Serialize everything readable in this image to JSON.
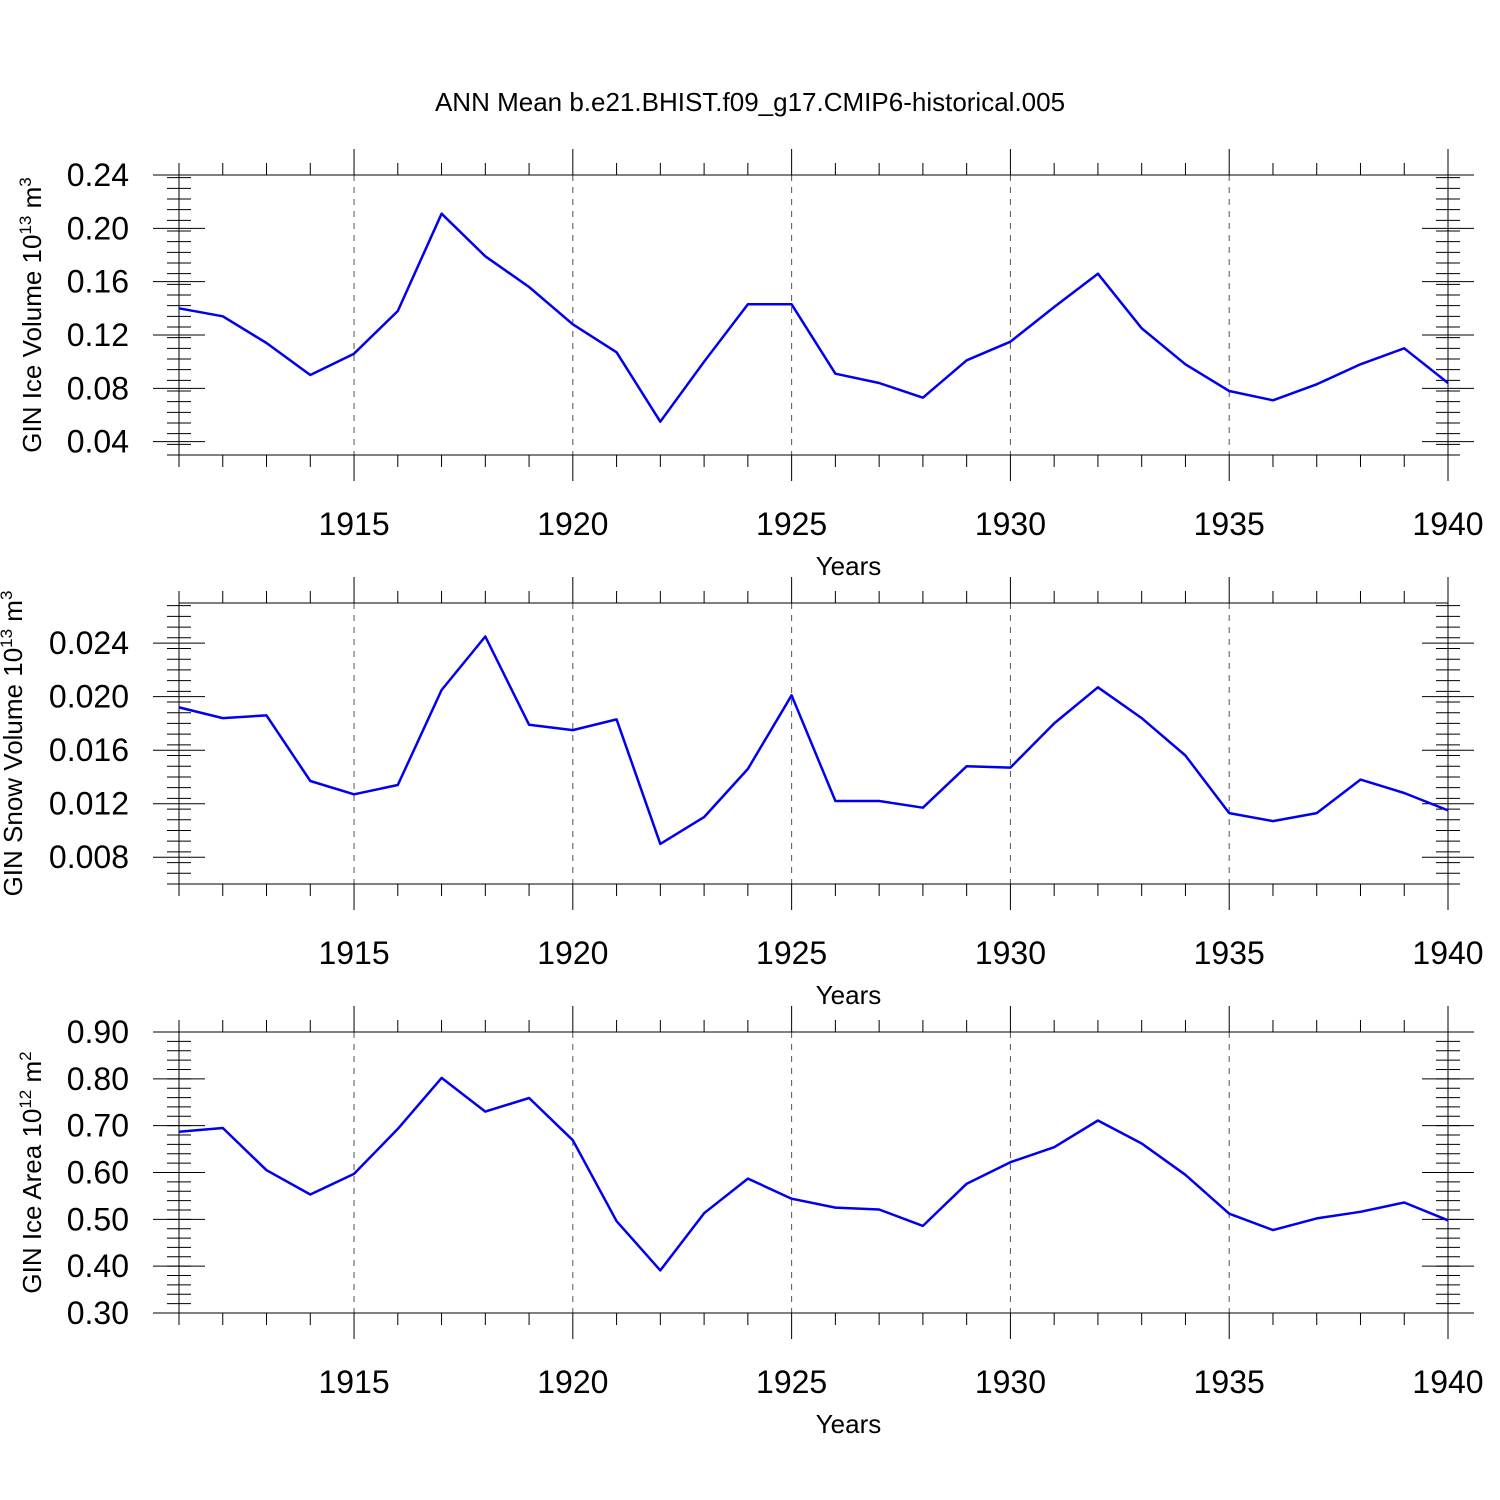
{
  "title": "ANN Mean b.e21.BHIST.f09_g17.CMIP6-historical.005",
  "colors": {
    "line": "#0000ee",
    "axis": "#000000",
    "grid": "#555555"
  },
  "chart_data": [
    {
      "type": "line",
      "ylabel": {
        "text": "GIN Ice Volume 10",
        "sup": "13",
        "unit": " m",
        "unit_sup": "3"
      },
      "xlabel": "Years",
      "xlim": [
        1911,
        1940
      ],
      "ylim": [
        0.03,
        0.24
      ],
      "yticks": [
        0.04,
        0.08,
        0.12,
        0.16,
        0.2,
        0.24
      ],
      "ytick_labels": [
        "0.04",
        "0.08",
        "0.12",
        "0.16",
        "0.20",
        "0.24"
      ],
      "yminor_step": 0.008,
      "xticks": [
        1915,
        1920,
        1925,
        1930,
        1935,
        1940
      ],
      "xtick_labels": [
        "1915",
        "1920",
        "1925",
        "1930",
        "1935",
        "1940"
      ],
      "grid": "vertical dashed at major x ticks",
      "x": [
        1911,
        1912,
        1913,
        1914,
        1915,
        1916,
        1917,
        1918,
        1919,
        1920,
        1921,
        1922,
        1923,
        1924,
        1925,
        1926,
        1927,
        1928,
        1929,
        1930,
        1931,
        1932,
        1933,
        1934,
        1935,
        1936,
        1937,
        1938,
        1939,
        1940
      ],
      "y": [
        0.14,
        0.134,
        0.114,
        0.09,
        0.106,
        0.138,
        0.211,
        0.179,
        0.156,
        0.128,
        0.107,
        0.055,
        0.1,
        0.143,
        0.143,
        0.091,
        0.084,
        0.073,
        0.101,
        0.115,
        0.141,
        0.166,
        0.125,
        0.098,
        0.078,
        0.071,
        0.083,
        0.098,
        0.11,
        0.084
      ]
    },
    {
      "type": "line",
      "ylabel": {
        "text": "GIN Snow Volume 10",
        "sup": "13",
        "unit": " m",
        "unit_sup": "3"
      },
      "xlabel": "Years",
      "xlim": [
        1911,
        1940
      ],
      "ylim": [
        0.006,
        0.027
      ],
      "yticks": [
        0.008,
        0.012,
        0.016,
        0.02,
        0.024
      ],
      "ytick_labels": [
        "0.008",
        "0.012",
        "0.016",
        "0.020",
        "0.024"
      ],
      "yminor_step": 0.0008,
      "xticks": [
        1915,
        1920,
        1925,
        1930,
        1935,
        1940
      ],
      "xtick_labels": [
        "1915",
        "1920",
        "1925",
        "1930",
        "1935",
        "1940"
      ],
      "grid": "vertical dashed at major x ticks",
      "x": [
        1911,
        1912,
        1913,
        1914,
        1915,
        1916,
        1917,
        1918,
        1919,
        1920,
        1921,
        1922,
        1923,
        1924,
        1925,
        1926,
        1927,
        1928,
        1929,
        1930,
        1931,
        1932,
        1933,
        1934,
        1935,
        1936,
        1937,
        1938,
        1939,
        1940
      ],
      "y": [
        0.0192,
        0.0184,
        0.0186,
        0.0137,
        0.0127,
        0.0134,
        0.0205,
        0.0245,
        0.0179,
        0.0175,
        0.0183,
        0.009,
        0.011,
        0.0146,
        0.0201,
        0.0122,
        0.0122,
        0.0117,
        0.0148,
        0.0147,
        0.018,
        0.0207,
        0.0184,
        0.0156,
        0.0113,
        0.0107,
        0.0113,
        0.0138,
        0.0128,
        0.0115
      ]
    },
    {
      "type": "line",
      "ylabel": {
        "text": "GIN Ice Area 10",
        "sup": "12",
        "unit": " m",
        "unit_sup": "2"
      },
      "xlabel": "Years",
      "xlim": [
        1911,
        1940
      ],
      "ylim": [
        0.3,
        0.9
      ],
      "yticks": [
        0.3,
        0.4,
        0.5,
        0.6,
        0.7,
        0.8,
        0.9
      ],
      "ytick_labels": [
        "0.30",
        "0.40",
        "0.50",
        "0.60",
        "0.70",
        "0.80",
        "0.90"
      ],
      "yminor_step": 0.02,
      "xticks": [
        1915,
        1920,
        1925,
        1930,
        1935,
        1940
      ],
      "xtick_labels": [
        "1915",
        "1920",
        "1925",
        "1930",
        "1935",
        "1940"
      ],
      "grid": "vertical dashed at major x ticks",
      "x": [
        1911,
        1912,
        1913,
        1914,
        1915,
        1916,
        1917,
        1918,
        1919,
        1920,
        1921,
        1922,
        1923,
        1924,
        1925,
        1926,
        1927,
        1928,
        1929,
        1930,
        1931,
        1932,
        1933,
        1934,
        1935,
        1936,
        1937,
        1938,
        1939,
        1940
      ],
      "y": [
        0.687,
        0.695,
        0.605,
        0.553,
        0.597,
        0.693,
        0.802,
        0.73,
        0.759,
        0.669,
        0.496,
        0.391,
        0.513,
        0.587,
        0.544,
        0.525,
        0.521,
        0.486,
        0.576,
        0.622,
        0.654,
        0.711,
        0.662,
        0.595,
        0.512,
        0.477,
        0.502,
        0.516,
        0.536,
        0.498
      ]
    }
  ]
}
